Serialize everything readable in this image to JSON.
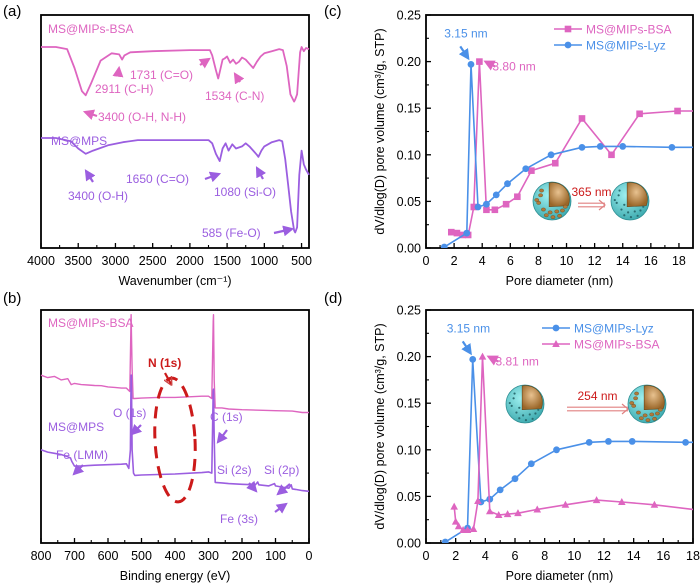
{
  "colors": {
    "pink": "#de65c0",
    "purple": "#9b5ee0",
    "blue": "#4a90e8",
    "red": "#cc1a1a",
    "shell": "#6fd3d6",
    "core": "#b07a3a"
  },
  "chart_data": [
    {
      "id": "a",
      "panel_label": "(a)",
      "type": "line",
      "title": "",
      "xlabel": "Wavenumber (cm⁻¹)",
      "ylabel": "",
      "xlim": [
        4000,
        400
      ],
      "xticks": [
        4000,
        3500,
        3000,
        2500,
        2000,
        1500,
        1000,
        500
      ],
      "yticks_visible": false,
      "series": [
        {
          "name": "MS@MIPs-BSA",
          "color": "pink",
          "offset": 0.85,
          "x": [
            4000,
            3800,
            3650,
            3550,
            3450,
            3400,
            3330,
            3200,
            3050,
            2950,
            2911,
            2880,
            2800,
            2500,
            2000,
            1731,
            1700,
            1650,
            1620,
            1600,
            1560,
            1534,
            1500,
            1460,
            1420,
            1380,
            1340,
            1300,
            1250,
            1200,
            1150,
            1100,
            1050,
            1000,
            900,
            800,
            750,
            700,
            650,
            600,
            585,
            560,
            520,
            500,
            470,
            440,
            400
          ],
          "y": [
            0,
            0,
            -0.02,
            -0.2,
            -0.42,
            -0.46,
            -0.35,
            -0.13,
            -0.06,
            -0.07,
            -0.12,
            -0.08,
            -0.05,
            -0.04,
            -0.03,
            -0.03,
            -0.08,
            -0.22,
            -0.3,
            -0.24,
            -0.12,
            -0.11,
            -0.09,
            -0.15,
            -0.12,
            -0.16,
            -0.14,
            -0.1,
            -0.12,
            -0.16,
            -0.2,
            -0.14,
            -0.09,
            -0.06,
            -0.04,
            -0.02,
            -0.03,
            -0.18,
            -0.45,
            -0.52,
            -0.5,
            -0.45,
            -0.05,
            0.0,
            -0.04,
            -0.01,
            -0.02
          ]
        },
        {
          "name": "MS@MPS",
          "color": "purple",
          "offset": 0.36,
          "x": [
            4000,
            3800,
            3600,
            3500,
            3400,
            3300,
            3100,
            2900,
            2700,
            2500,
            2000,
            1750,
            1700,
            1650,
            1600,
            1560,
            1520,
            1480,
            1430,
            1380,
            1300,
            1250,
            1200,
            1150,
            1100,
            1080,
            1040,
            1000,
            950,
            900,
            800,
            760,
            720,
            680,
            640,
            600,
            585,
            560,
            530,
            500,
            470,
            440,
            400
          ],
          "y": [
            0,
            0,
            -0.03,
            -0.1,
            -0.15,
            -0.12,
            -0.07,
            -0.04,
            -0.02,
            -0.02,
            -0.02,
            -0.02,
            -0.05,
            -0.15,
            -0.22,
            -0.1,
            -0.05,
            -0.12,
            -0.06,
            -0.1,
            -0.08,
            -0.05,
            -0.08,
            -0.12,
            -0.16,
            -0.18,
            -0.12,
            -0.08,
            -0.06,
            -0.04,
            -0.02,
            -0.03,
            -0.2,
            -0.45,
            -0.7,
            -0.88,
            -0.9,
            -0.85,
            -0.35,
            -0.12,
            -0.25,
            -0.3,
            -0.35
          ]
        }
      ],
      "annotations": [
        {
          "text": "MS@MIPs-BSA",
          "series": "MS@MIPs-BSA",
          "role": "series-label"
        },
        {
          "text": "3400 (O-H, N-H)",
          "series": "MS@MIPs-BSA"
        },
        {
          "text": "2911 (C-H)",
          "series": "MS@MIPs-BSA"
        },
        {
          "text": "1731 (C=O)",
          "series": "MS@MIPs-BSA"
        },
        {
          "text": "1534 (C-N)",
          "series": "MS@MIPs-BSA"
        },
        {
          "text": "MS@MPS",
          "series": "MS@MPS",
          "role": "series-label"
        },
        {
          "text": "3400 (O-H)",
          "series": "MS@MPS"
        },
        {
          "text": "1650 (C=O)",
          "series": "MS@MPS"
        },
        {
          "text": "1080 (Si-O)",
          "series": "MS@MPS"
        },
        {
          "text": "585 (Fe-O)",
          "series": "MS@MPS"
        }
      ]
    },
    {
      "id": "b",
      "panel_label": "(b)",
      "type": "line",
      "title": "",
      "xlabel": "Binding energy (eV)",
      "ylabel": "",
      "xlim": [
        800,
        0
      ],
      "xticks": [
        800,
        700,
        600,
        500,
        400,
        300,
        200,
        100,
        0
      ],
      "yticks_visible": false,
      "series": [
        {
          "name": "MS@MIPs-BSA",
          "color": "pink",
          "x": [
            800,
            780,
            760,
            740,
            720,
            710,
            700,
            680,
            660,
            640,
            620,
            600,
            580,
            560,
            545,
            535,
            532,
            531,
            528,
            525,
            520,
            500,
            450,
            400,
            350,
            320,
            300,
            290,
            286,
            285,
            283,
            280,
            260,
            240,
            200,
            150,
            100,
            50,
            20,
            0
          ],
          "y": [
            0.72,
            0.71,
            0.715,
            0.7,
            0.705,
            0.68,
            0.685,
            0.68,
            0.678,
            0.676,
            0.675,
            0.67,
            0.668,
            0.665,
            0.665,
            0.65,
            0.9,
            0.98,
            0.75,
            0.62,
            0.62,
            0.622,
            0.625,
            0.625,
            0.628,
            0.63,
            0.63,
            0.62,
            0.95,
            0.98,
            0.7,
            0.58,
            0.58,
            0.575,
            0.572,
            0.57,
            0.568,
            0.566,
            0.56,
            0.56
          ]
        },
        {
          "name": "MS@MPS",
          "color": "purple",
          "x": [
            800,
            780,
            760,
            740,
            720,
            712,
            708,
            700,
            680,
            660,
            640,
            600,
            560,
            545,
            538,
            533,
            531,
            530,
            528,
            524,
            520,
            500,
            450,
            400,
            350,
            320,
            300,
            290,
            286,
            285,
            283,
            280,
            260,
            240,
            200,
            160,
            153,
            150,
            120,
            103,
            100,
            80,
            60,
            53,
            50,
            40,
            20,
            0
          ],
          "y": [
            0.4,
            0.39,
            0.385,
            0.38,
            0.37,
            0.365,
            0.35,
            0.33,
            0.33,
            0.332,
            0.334,
            0.336,
            0.338,
            0.34,
            0.32,
            0.4,
            0.72,
            0.72,
            0.4,
            0.3,
            0.29,
            0.292,
            0.294,
            0.296,
            0.3,
            0.302,
            0.305,
            0.3,
            0.65,
            0.66,
            0.45,
            0.26,
            0.258,
            0.255,
            0.252,
            0.25,
            0.262,
            0.25,
            0.245,
            0.255,
            0.245,
            0.24,
            0.235,
            0.25,
            0.232,
            0.23,
            0.225,
            0.222
          ]
        }
      ],
      "annotations": [
        {
          "text": "MS@MIPs-BSA",
          "series": "MS@MIPs-BSA",
          "role": "series-label"
        },
        {
          "text": "MS@MPS",
          "series": "MS@MPS",
          "role": "series-label"
        },
        {
          "text": "N (1s)",
          "color": "red"
        },
        {
          "text": "O (1s)",
          "series": "MS@MPS"
        },
        {
          "text": "C (1s)",
          "series": "MS@MPS"
        },
        {
          "text": "Fe (LMM)",
          "series": "MS@MPS"
        },
        {
          "text": "Si (2s)",
          "series": "MS@MPS"
        },
        {
          "text": "Si (2p)",
          "series": "MS@MPS"
        },
        {
          "text": "Fe (3s)",
          "series": "MS@MPS"
        }
      ]
    },
    {
      "id": "c",
      "panel_label": "(c)",
      "type": "line",
      "title": "",
      "xlabel": "Pore diameter (nm)",
      "ylabel": "dV/dlog(D) pore volume  (cm³/g, STP)",
      "xlim": [
        0,
        19
      ],
      "ylim": [
        0,
        0.25
      ],
      "xticks": [
        0,
        2,
        4,
        6,
        8,
        10,
        12,
        14,
        16,
        18
      ],
      "yticks": [
        "0.00",
        "0.05",
        "0.10",
        "0.15",
        "0.20",
        "0.25"
      ],
      "legend": "top-right",
      "series": [
        {
          "name": "MS@MIPs-BSA",
          "color": "pink",
          "marker": "square",
          "x": [
            1.8,
            2.2,
            2.6,
            3.0,
            3.4,
            3.8,
            4.3,
            4.9,
            5.7,
            6.5,
            7.5,
            9.2,
            11.1,
            13.2,
            15.2,
            17.9,
            19
          ],
          "y": [
            0.017,
            0.016,
            0.014,
            0.014,
            0.044,
            0.2,
            0.041,
            0.041,
            0.047,
            0.055,
            0.083,
            0.091,
            0.139,
            0.1,
            0.144,
            0.147,
            0.147
          ]
        },
        {
          "name": "MS@MIPs-Lyz",
          "color": "blue",
          "marker": "circle",
          "x": [
            1.3,
            2.9,
            3.2,
            3.7,
            4.3,
            5.0,
            5.8,
            7.1,
            8.9,
            11.1,
            12.4,
            14.0,
            17.5,
            19
          ],
          "y": [
            0.001,
            0.016,
            0.197,
            0.044,
            0.047,
            0.057,
            0.069,
            0.085,
            0.1,
            0.108,
            0.109,
            0.109,
            0.108,
            0.108
          ]
        }
      ],
      "annotations": [
        {
          "text": "3.15 nm",
          "color": "blue",
          "x": 3.15,
          "y": 0.197
        },
        {
          "text": "3.80 nm",
          "color": "pink",
          "x": 3.8,
          "y": 0.2
        },
        {
          "text": "365 nm",
          "color": "red",
          "role": "irradiation-arrow"
        }
      ],
      "inset": {
        "description": "open-pore shell sphere transforms to closed-pore shell sphere",
        "arrow_label": "365 nm"
      }
    },
    {
      "id": "d",
      "panel_label": "(d)",
      "type": "line",
      "title": "",
      "xlabel": "Pore diameter (nm)",
      "ylabel": "dV/dlog(D) pore volume  (cm³/g, STP)",
      "xlim": [
        0,
        18
      ],
      "ylim": [
        0,
        0.25
      ],
      "xticks": [
        0,
        2,
        4,
        6,
        8,
        10,
        12,
        14,
        16,
        18
      ],
      "yticks": [
        "0.00",
        "0.05",
        "0.10",
        "0.15",
        "0.20",
        "0.25"
      ],
      "legend": "top-right",
      "series": [
        {
          "name": "MS@MIPs-Lyz",
          "color": "blue",
          "marker": "circle",
          "x": [
            1.3,
            2.8,
            3.15,
            3.7,
            4.3,
            5.0,
            6.0,
            7.1,
            8.8,
            11.0,
            12.3,
            13.9,
            17.5,
            18
          ],
          "y": [
            0.001,
            0.016,
            0.197,
            0.044,
            0.047,
            0.057,
            0.069,
            0.085,
            0.1,
            0.108,
            0.109,
            0.109,
            0.108,
            0.108
          ]
        },
        {
          "name": "MS@MIPs-BSA",
          "color": "pink",
          "marker": "triangle",
          "x": [
            1.9,
            2.0,
            2.2,
            2.5,
            2.8,
            3.2,
            3.5,
            3.81,
            4.3,
            4.9,
            5.5,
            6.2,
            7.5,
            9.4,
            11.5,
            13.2,
            15.4,
            18
          ],
          "y": [
            0.039,
            0.023,
            0.018,
            0.014,
            0.014,
            0.015,
            0.045,
            0.2,
            0.034,
            0.03,
            0.031,
            0.032,
            0.036,
            0.041,
            0.046,
            0.044,
            0.041,
            0.036
          ]
        }
      ],
      "annotations": [
        {
          "text": "3.15 nm",
          "color": "blue",
          "x": 3.15,
          "y": 0.197
        },
        {
          "text": "3.81 nm",
          "color": "pink",
          "x": 3.81,
          "y": 0.2
        },
        {
          "text": "254 nm",
          "color": "red",
          "role": "irradiation-arrow"
        }
      ],
      "inset": {
        "description": "closed-pore shell sphere transforms to open-pore shell sphere",
        "arrow_label": "254 nm"
      }
    }
  ]
}
